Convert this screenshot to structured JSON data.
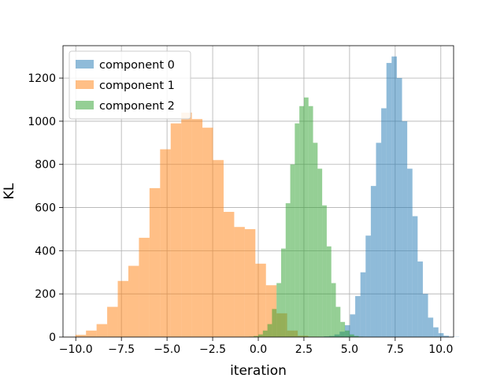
{
  "chart_data": {
    "type": "histogram",
    "title": "",
    "xlabel": "iteration",
    "ylabel": "KL",
    "xlim": [
      -10.7,
      10.7
    ],
    "ylim": [
      0,
      1350
    ],
    "xticks": [
      -10.0,
      -7.5,
      -5.0,
      -2.5,
      0.0,
      2.5,
      5.0,
      7.5,
      10.0
    ],
    "xtick_labels": [
      "−10.0",
      "−7.5",
      "−5.0",
      "−2.5",
      "0.0",
      "2.5",
      "5.0",
      "7.5",
      "10.0"
    ],
    "yticks": [
      0,
      200,
      400,
      600,
      800,
      1000,
      1200
    ],
    "ytick_labels": [
      "0",
      "200",
      "400",
      "600",
      "800",
      "1000",
      "1200"
    ],
    "grid": true,
    "legend_position": "top-left",
    "series": [
      {
        "name": "component 0",
        "color": "#1f77b4",
        "alpha": 0.5,
        "bin_start": 3.6,
        "bin_width": 0.285,
        "counts": [
          3,
          5,
          12,
          25,
          55,
          105,
          190,
          300,
          470,
          700,
          900,
          1060,
          1270,
          1300,
          1200,
          1000,
          780,
          560,
          350,
          200,
          90,
          45,
          18,
          6,
          2,
          1
        ]
      },
      {
        "name": "component 1",
        "color": "#ff7f0e",
        "alpha": 0.5,
        "bin_start": -10.6,
        "bin_width": 0.58,
        "counts": [
          1,
          10,
          30,
          60,
          140,
          260,
          330,
          460,
          690,
          870,
          990,
          1040,
          1010,
          970,
          820,
          580,
          510,
          500,
          340,
          240,
          110,
          30,
          6,
          2
        ]
      },
      {
        "name": "component 2",
        "color": "#2ca02c",
        "alpha": 0.5,
        "bin_start": -0.5,
        "bin_width": 0.25,
        "counts": [
          2,
          5,
          12,
          30,
          60,
          130,
          250,
          410,
          620,
          800,
          990,
          1070,
          1110,
          1070,
          900,
          780,
          610,
          420,
          250,
          140,
          70,
          30,
          12,
          5,
          2
        ]
      }
    ]
  }
}
